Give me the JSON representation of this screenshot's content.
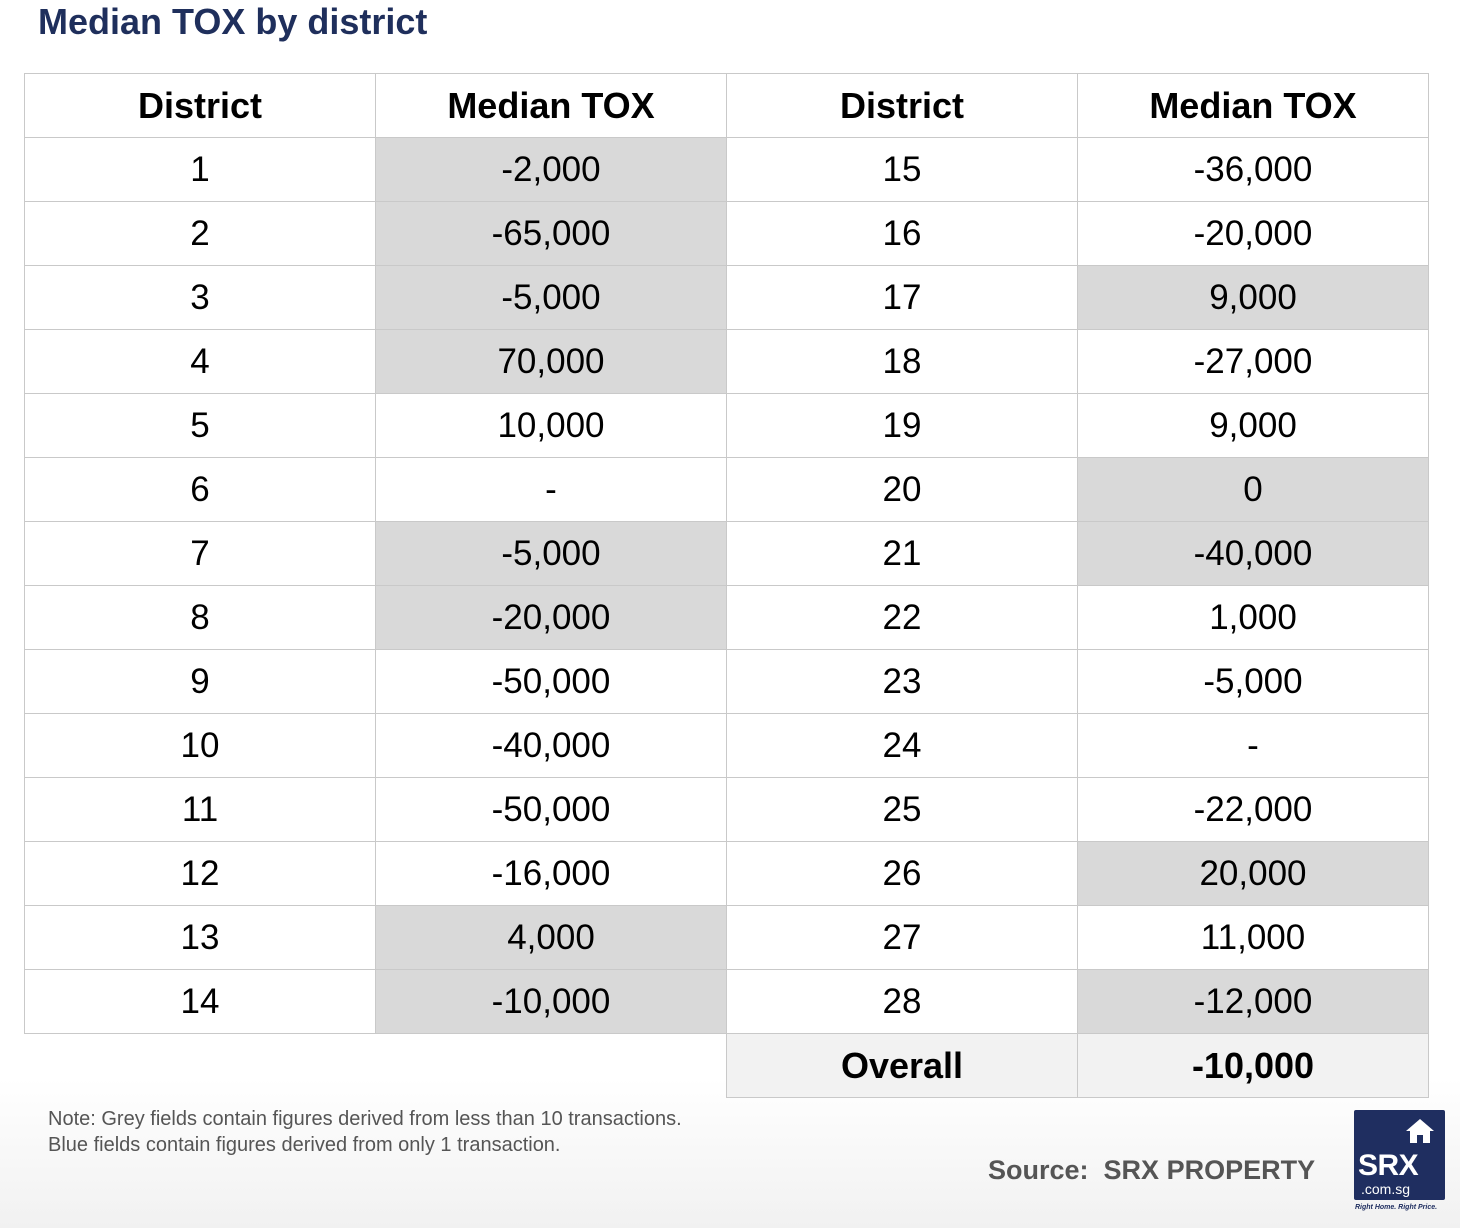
{
  "title": "Median TOX by district",
  "table": {
    "headers": [
      "District",
      "Median TOX",
      "District",
      "Median TOX"
    ],
    "rows": [
      {
        "left": {
          "district": "1",
          "value": "-2,000",
          "grey": true
        },
        "right": {
          "district": "15",
          "value": "-36,000",
          "grey": false
        }
      },
      {
        "left": {
          "district": "2",
          "value": "-65,000",
          "grey": true
        },
        "right": {
          "district": "16",
          "value": "-20,000",
          "grey": false
        }
      },
      {
        "left": {
          "district": "3",
          "value": "-5,000",
          "grey": true
        },
        "right": {
          "district": "17",
          "value": "9,000",
          "grey": true
        }
      },
      {
        "left": {
          "district": "4",
          "value": "70,000",
          "grey": true
        },
        "right": {
          "district": "18",
          "value": "-27,000",
          "grey": false
        }
      },
      {
        "left": {
          "district": "5",
          "value": "10,000",
          "grey": false
        },
        "right": {
          "district": "19",
          "value": "9,000",
          "grey": false
        }
      },
      {
        "left": {
          "district": "6",
          "value": "-",
          "grey": false
        },
        "right": {
          "district": "20",
          "value": "0",
          "grey": true
        }
      },
      {
        "left": {
          "district": "7",
          "value": "-5,000",
          "grey": true
        },
        "right": {
          "district": "21",
          "value": "-40,000",
          "grey": true
        }
      },
      {
        "left": {
          "district": "8",
          "value": "-20,000",
          "grey": true
        },
        "right": {
          "district": "22",
          "value": "1,000",
          "grey": false
        }
      },
      {
        "left": {
          "district": "9",
          "value": "-50,000",
          "grey": false
        },
        "right": {
          "district": "23",
          "value": "-5,000",
          "grey": false
        }
      },
      {
        "left": {
          "district": "10",
          "value": "-40,000",
          "grey": false
        },
        "right": {
          "district": "24",
          "value": "-",
          "grey": false
        }
      },
      {
        "left": {
          "district": "11",
          "value": "-50,000",
          "grey": false
        },
        "right": {
          "district": "25",
          "value": "-22,000",
          "grey": false
        }
      },
      {
        "left": {
          "district": "12",
          "value": "-16,000",
          "grey": false
        },
        "right": {
          "district": "26",
          "value": "20,000",
          "grey": true
        }
      },
      {
        "left": {
          "district": "13",
          "value": "4,000",
          "grey": true
        },
        "right": {
          "district": "27",
          "value": "11,000",
          "grey": false
        }
      },
      {
        "left": {
          "district": "14",
          "value": "-10,000",
          "grey": true
        },
        "right": {
          "district": "28",
          "value": "-12,000",
          "grey": true
        }
      }
    ],
    "overall": {
      "label": "Overall",
      "value": "-10,000"
    }
  },
  "notes": [
    "Note: Grey fields contain figures derived from less than 10 transactions.",
    "Blue fields contain figures derived from only 1 transaction."
  ],
  "source": {
    "label": "Source:",
    "name": "SRX PROPERTY"
  },
  "logo": {
    "brand": "SRX",
    "domain": ".com.sg",
    "tagline": "Right Home. Right Price.",
    "icon": "house-icon"
  },
  "colors": {
    "title": "#1f2f5c",
    "grey_field": "#d9d9d9",
    "logo_bg": "#1f2e60",
    "overall_bg": "#f2f2f2"
  }
}
